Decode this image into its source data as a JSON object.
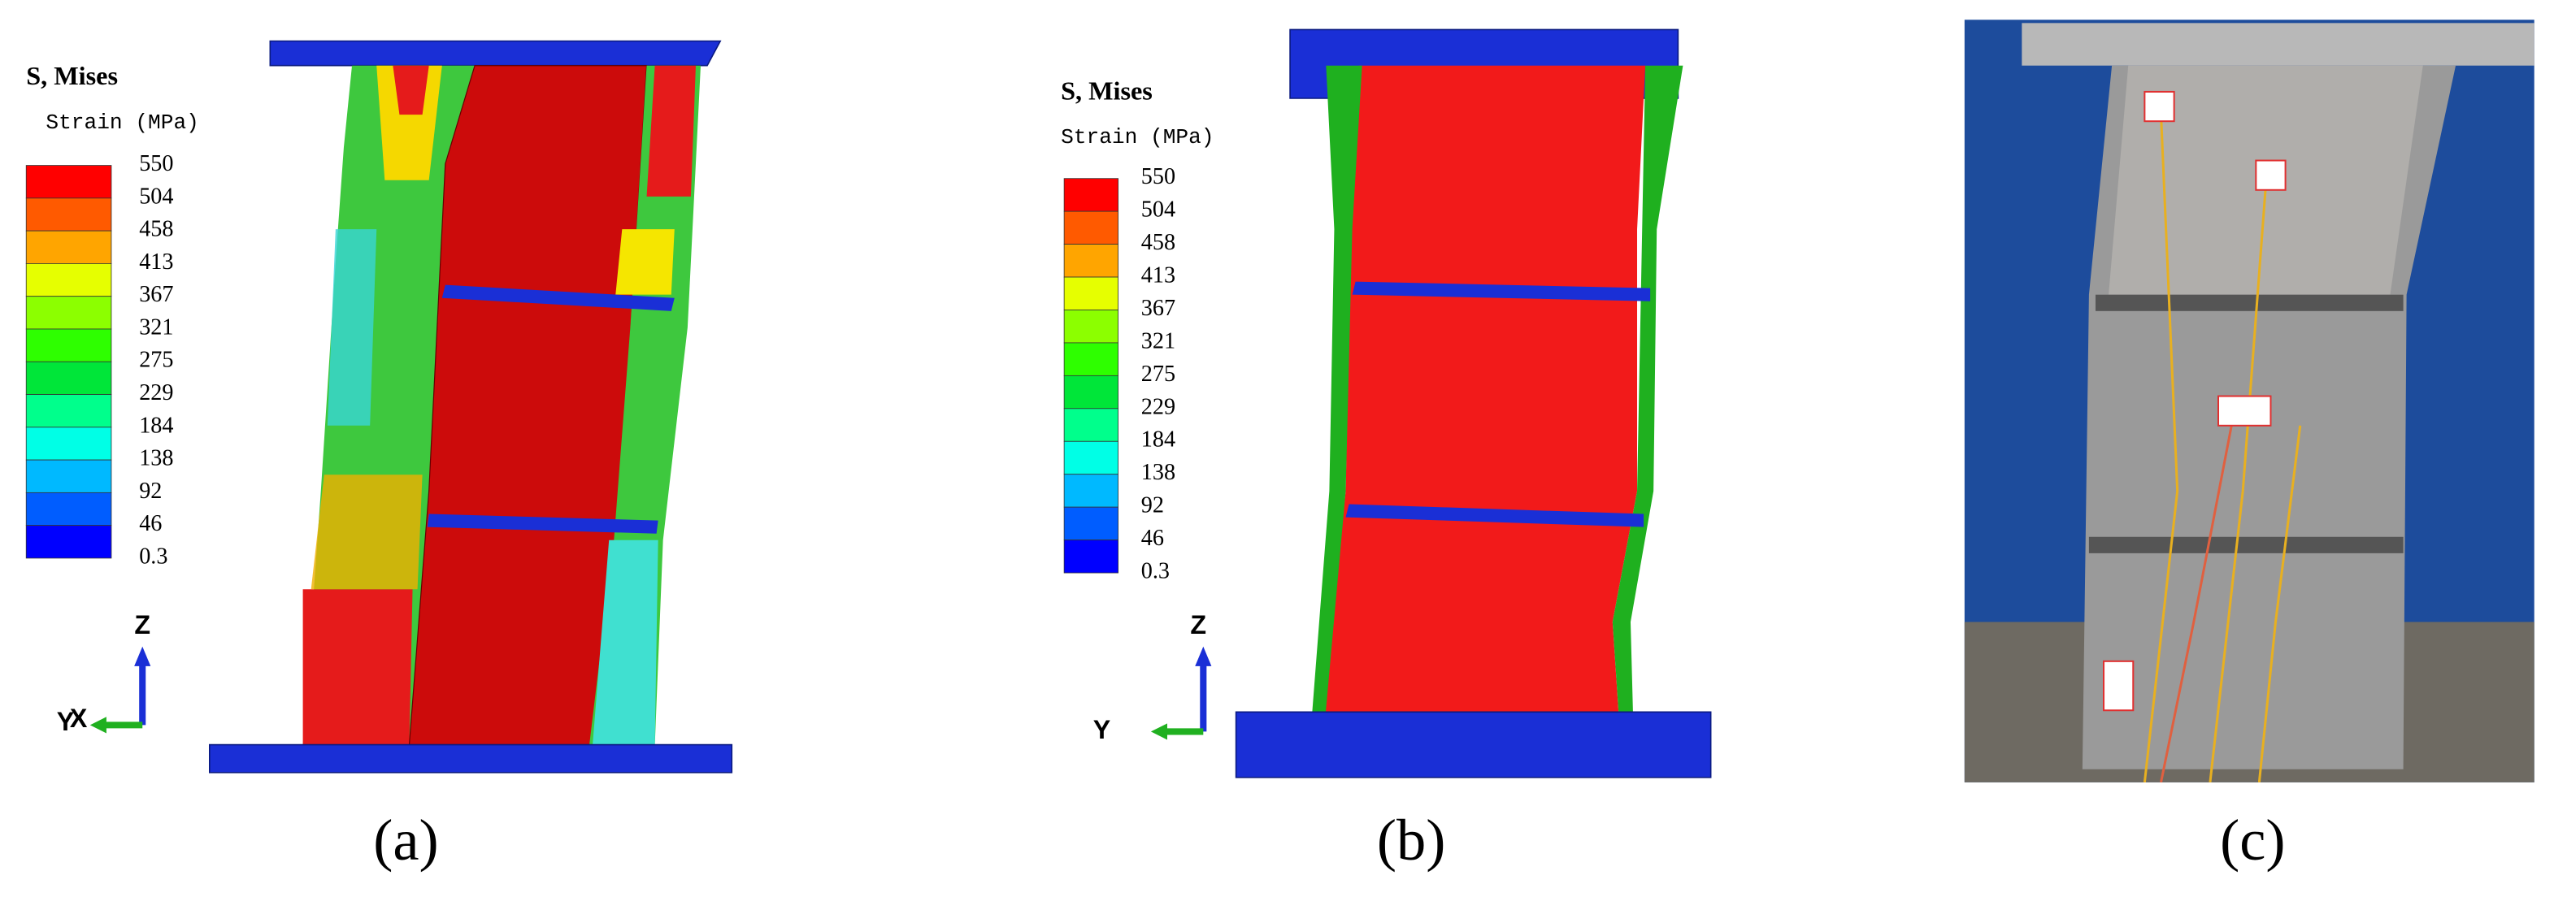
{
  "panels": [
    {
      "label": "(a)",
      "legend": {
        "title": "S, Mises",
        "subtitle": "Strain (MPa)",
        "values": [
          550,
          504,
          458,
          413,
          367,
          321,
          275,
          229,
          184,
          138,
          92,
          46,
          0.3
        ]
      },
      "axes": [
        "Z",
        "X",
        "Y"
      ]
    },
    {
      "label": "(b)",
      "legend": {
        "title": "S, Mises",
        "subtitle": "Strain (MPa)",
        "values": [
          550,
          504,
          458,
          413,
          367,
          321,
          275,
          229,
          184,
          138,
          92,
          46,
          0.3
        ]
      },
      "axes": [
        "Z",
        "Y"
      ]
    },
    {
      "label": "(c)"
    }
  ]
}
